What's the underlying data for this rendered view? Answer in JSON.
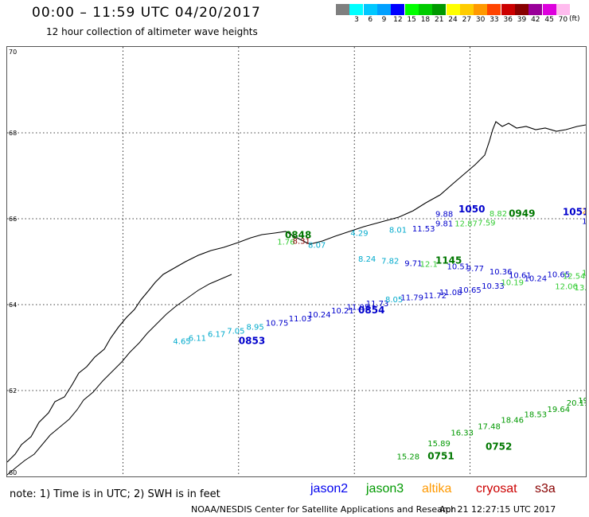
{
  "title": "00:00 – 11:59 UTC 04/20/2017",
  "subtitle": "12 hour collection of altimeter wave heights",
  "legend": {
    "unit": "(ft)",
    "entries": [
      {
        "label": "",
        "color": "#7f7f7f"
      },
      {
        "label": "3",
        "color": "#00ffff"
      },
      {
        "label": "6",
        "color": "#00c8ff"
      },
      {
        "label": "9",
        "color": "#00a0ff"
      },
      {
        "label": "12",
        "color": "#0000ff"
      },
      {
        "label": "15",
        "color": "#00ff00"
      },
      {
        "label": "18",
        "color": "#00cc00"
      },
      {
        "label": "21",
        "color": "#009900"
      },
      {
        "label": "24",
        "color": "#ffff00"
      },
      {
        "label": "27",
        "color": "#ffcc00"
      },
      {
        "label": "30",
        "color": "#ff9900"
      },
      {
        "label": "33",
        "color": "#ff4400"
      },
      {
        "label": "36",
        "color": "#cc0000"
      },
      {
        "label": "39",
        "color": "#880000"
      },
      {
        "label": "42",
        "color": "#990099"
      },
      {
        "label": "45",
        "color": "#dd00dd"
      },
      {
        "label": "70",
        "color": "#ffbbee"
      }
    ]
  },
  "axes": {
    "lon_ticks": [
      "-45",
      "-42",
      "-39",
      "-36",
      "-33",
      "-30"
    ],
    "lat_ticks": [
      "70",
      "68",
      "66",
      "64",
      "62",
      "60"
    ],
    "lon_range": [
      -45,
      -30
    ],
    "lat_range": [
      60,
      70
    ],
    "grid": true,
    "grid_lon": [
      -42,
      -39,
      -36,
      -33
    ],
    "grid_lat": [
      68,
      66,
      64,
      62
    ]
  },
  "time_labels": [
    {
      "text": "0853",
      "lon": -39.0,
      "lat": 63.08,
      "color": "#0000cc"
    },
    {
      "text": "0854",
      "lon": -35.9,
      "lat": 63.8,
      "color": "#0000cc"
    },
    {
      "text": "1145",
      "lon": -33.9,
      "lat": 64.95,
      "color": "#007700"
    },
    {
      "text": "0848",
      "lon": -37.8,
      "lat": 65.55,
      "color": "#007700"
    },
    {
      "text": "0949",
      "lon": -32.0,
      "lat": 66.05,
      "color": "#007700"
    },
    {
      "text": "1050",
      "lon": -33.3,
      "lat": 66.15,
      "color": "#0000cc"
    },
    {
      "text": "1051",
      "lon": -30.6,
      "lat": 66.08,
      "color": "#0000cc"
    },
    {
      "text": "0751",
      "lon": -34.1,
      "lat": 60.4,
      "color": "#007700"
    },
    {
      "text": "0752",
      "lon": -32.6,
      "lat": 60.62,
      "color": "#007700"
    }
  ],
  "wave_values": [
    {
      "text": "4.65",
      "lon": -40.7,
      "lat": 63.08,
      "color": "#00aacc"
    },
    {
      "text": "6.11",
      "lon": -40.3,
      "lat": 63.16,
      "color": "#00aacc"
    },
    {
      "text": "6.17",
      "lon": -39.8,
      "lat": 63.25,
      "color": "#00aacc"
    },
    {
      "text": "7.05",
      "lon": -39.3,
      "lat": 63.32,
      "color": "#00aacc"
    },
    {
      "text": "8.95",
      "lon": -38.8,
      "lat": 63.42,
      "color": "#00aacc"
    },
    {
      "text": "10.75",
      "lon": -38.3,
      "lat": 63.51,
      "color": "#0000cc"
    },
    {
      "text": "11.03",
      "lon": -37.7,
      "lat": 63.61,
      "color": "#0000cc"
    },
    {
      "text": "10.24",
      "lon": -37.2,
      "lat": 63.7,
      "color": "#0000cc"
    },
    {
      "text": "10.21",
      "lon": -36.6,
      "lat": 63.8,
      "color": "#0000cc"
    },
    {
      "text": "11.05",
      "lon": -36.2,
      "lat": 63.88,
      "color": "#0000cc"
    },
    {
      "text": "11.73",
      "lon": -35.7,
      "lat": 63.96,
      "color": "#0000cc"
    },
    {
      "text": "8.05",
      "lon": -35.2,
      "lat": 64.06,
      "color": "#00aacc"
    },
    {
      "text": "11.79",
      "lon": -34.8,
      "lat": 64.1,
      "color": "#0000cc"
    },
    {
      "text": "11.72",
      "lon": -34.2,
      "lat": 64.15,
      "color": "#0000cc"
    },
    {
      "text": "11.08",
      "lon": -33.8,
      "lat": 64.22,
      "color": "#0000cc"
    },
    {
      "text": "10.65",
      "lon": -33.3,
      "lat": 64.28,
      "color": "#0000cc"
    },
    {
      "text": "10.33",
      "lon": -32.7,
      "lat": 64.37,
      "color": "#0000cc"
    },
    {
      "text": "10.19",
      "lon": -32.2,
      "lat": 64.45,
      "color": "#33cc33"
    },
    {
      "text": "10.24",
      "lon": -31.6,
      "lat": 64.55,
      "color": "#0000cc"
    },
    {
      "text": "10.65",
      "lon": -31.0,
      "lat": 64.64,
      "color": "#0000cc"
    },
    {
      "text": "12.06",
      "lon": -30.8,
      "lat": 64.36,
      "color": "#33cc33"
    },
    {
      "text": "13.48",
      "lon": -30.3,
      "lat": 64.33,
      "color": "#33cc33"
    },
    {
      "text": "12.54",
      "lon": -30.6,
      "lat": 64.6,
      "color": "#33cc33"
    },
    {
      "text": "13.65",
      "lon": -30.1,
      "lat": 64.68,
      "color": "#33cc33"
    },
    {
      "text": "8.24",
      "lon": -35.9,
      "lat": 65.0,
      "color": "#00aacc"
    },
    {
      "text": "7.82",
      "lon": -35.3,
      "lat": 64.95,
      "color": "#00aacc"
    },
    {
      "text": "9.71",
      "lon": -34.7,
      "lat": 64.9,
      "color": "#0000cc"
    },
    {
      "text": "12.1",
      "lon": -34.3,
      "lat": 64.88,
      "color": "#33cc33"
    },
    {
      "text": "10.51",
      "lon": -33.6,
      "lat": 64.82,
      "color": "#0000cc"
    },
    {
      "text": "9.77",
      "lon": -33.1,
      "lat": 64.78,
      "color": "#0000cc"
    },
    {
      "text": "10.36",
      "lon": -32.5,
      "lat": 64.7,
      "color": "#0000cc"
    },
    {
      "text": "10.61",
      "lon": -32.0,
      "lat": 64.62,
      "color": "#0000cc"
    },
    {
      "text": "4.29",
      "lon": -36.1,
      "lat": 65.6,
      "color": "#00aacc"
    },
    {
      "text": "8.01",
      "lon": -35.1,
      "lat": 65.68,
      "color": "#00aacc"
    },
    {
      "text": "11.53",
      "lon": -34.5,
      "lat": 65.7,
      "color": "#0000cc"
    },
    {
      "text": "9.81",
      "lon": -33.9,
      "lat": 65.82,
      "color": "#0000cc"
    },
    {
      "text": "9.88",
      "lon": -33.9,
      "lat": 66.05,
      "color": "#0000cc"
    },
    {
      "text": "12.87",
      "lon": -33.4,
      "lat": 65.82,
      "color": "#33cc33"
    },
    {
      "text": "7.59",
      "lon": -32.8,
      "lat": 65.84,
      "color": "#33cc33"
    },
    {
      "text": "8.82",
      "lon": -32.5,
      "lat": 66.06,
      "color": "#33cc33"
    },
    {
      "text": "10.40",
      "lon": -30.1,
      "lat": 65.88,
      "color": "#0000cc"
    },
    {
      "text": "24.45",
      "lon": -30.1,
      "lat": 66.12,
      "color": "#ff9900"
    },
    {
      "text": "1.76",
      "lon": -38.0,
      "lat": 65.4,
      "color": "#33cc33"
    },
    {
      "text": "8.31",
      "lon": -37.6,
      "lat": 65.42,
      "color": "#880000"
    },
    {
      "text": "8.07",
      "lon": -37.2,
      "lat": 65.32,
      "color": "#00aacc"
    },
    {
      "text": "15.28",
      "lon": -34.9,
      "lat": 60.4,
      "color": "#009900"
    },
    {
      "text": "15.89",
      "lon": -34.1,
      "lat": 60.7,
      "color": "#009900"
    },
    {
      "text": "16.33",
      "lon": -33.5,
      "lat": 60.95,
      "color": "#009900"
    },
    {
      "text": "17.48",
      "lon": -32.8,
      "lat": 61.1,
      "color": "#009900"
    },
    {
      "text": "18.46",
      "lon": -32.2,
      "lat": 61.25,
      "color": "#009900"
    },
    {
      "text": "18.53",
      "lon": -31.6,
      "lat": 61.38,
      "color": "#009900"
    },
    {
      "text": "19.64",
      "lon": -31.0,
      "lat": 61.5,
      "color": "#009900"
    },
    {
      "text": "20.11",
      "lon": -30.5,
      "lat": 61.65,
      "color": "#009900"
    },
    {
      "text": "19.50",
      "lon": -30.2,
      "lat": 61.7,
      "color": "#009900"
    }
  ],
  "footnote": "note: 1) Time is in UTC; 2) SWH is in feet",
  "satellites": [
    {
      "name": "jason2",
      "color": "#0000ee"
    },
    {
      "name": "jason3",
      "color": "#009900"
    },
    {
      "name": "altika",
      "color": "#ff9900"
    },
    {
      "name": "cryosat",
      "color": "#cc0000"
    },
    {
      "name": "s3a",
      "color": "#880000"
    }
  ],
  "credit": "NOAA/NESDIS Center for Satellite Applications and Research",
  "timestamp": "Apr 21 12:27:15 UTC 2017"
}
